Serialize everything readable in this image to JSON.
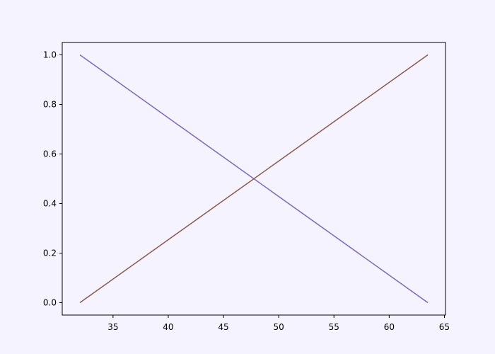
{
  "chart_data": {
    "type": "line",
    "title": "",
    "xlabel": "",
    "ylabel": "",
    "xlim": [
      30.4,
      65.1
    ],
    "ylim": [
      -0.05,
      1.05
    ],
    "xticks": [
      35,
      40,
      45,
      50,
      55,
      60,
      65
    ],
    "yticks": [
      0.0,
      0.2,
      0.4,
      0.6,
      0.8,
      1.0
    ],
    "xtick_labels": [
      "35",
      "40",
      "45",
      "50",
      "55",
      "60",
      "65"
    ],
    "ytick_labels": [
      "0.0",
      "0.2",
      "0.4",
      "0.6",
      "0.8",
      "1.0"
    ],
    "grid": false,
    "legend": false,
    "series": [
      {
        "x": [
          32.0,
          63.5
        ],
        "y": [
          1.0,
          0.0
        ],
        "color": "#7b68c9"
      },
      {
        "x": [
          32.0,
          63.5
        ],
        "y": [
          0.0,
          1.0
        ],
        "color": "#8c5a4f"
      }
    ],
    "colors": {
      "background": "#f5f3ff",
      "plot_background": "#f5f3ff",
      "axis": "#000000",
      "text": "#000000"
    }
  }
}
